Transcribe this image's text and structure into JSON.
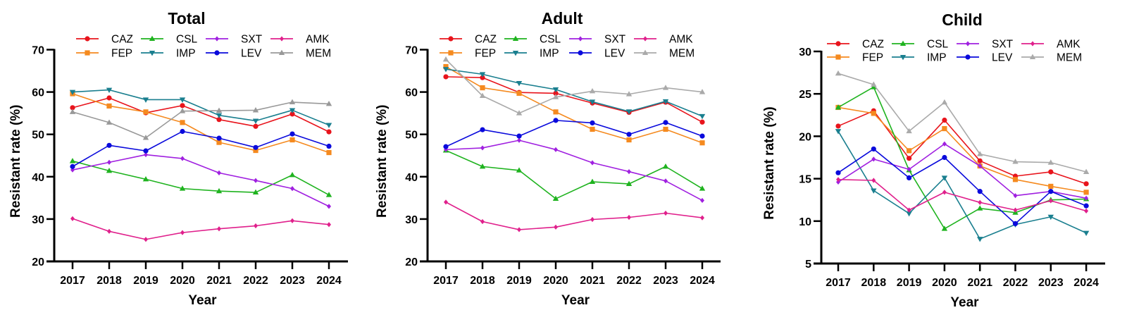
{
  "chart_data": [
    {
      "type": "line",
      "title": "Total",
      "xlabel": "Year",
      "ylabel": "Resistant rate (%)",
      "x": [
        "2017",
        "2018",
        "2019",
        "2020",
        "2021",
        "2022",
        "2023",
        "2024"
      ],
      "ylim": [
        20,
        70
      ],
      "yticks": [
        20,
        30,
        40,
        50,
        60,
        70
      ],
      "grid": false,
      "legend_position": "top",
      "series": [
        {
          "name": "CAZ",
          "color": "#e8141c",
          "marker": "circle",
          "values": [
            56.3,
            58.6,
            55.1,
            56.8,
            53.5,
            51.9,
            54.8,
            50.6
          ]
        },
        {
          "name": "FEP",
          "color": "#f58a1f",
          "marker": "square",
          "values": [
            59.6,
            56.7,
            55.3,
            52.8,
            48.1,
            46.2,
            48.7,
            45.7
          ]
        },
        {
          "name": "CSL",
          "color": "#1fb31f",
          "marker": "triangle-up",
          "values": [
            43.7,
            41.4,
            39.4,
            37.2,
            36.6,
            36.3,
            40.4,
            35.7
          ]
        },
        {
          "name": "IMP",
          "color": "#1a7f8f",
          "marker": "triangle-down",
          "values": [
            60.0,
            60.5,
            58.2,
            58.2,
            54.5,
            53.2,
            55.7,
            52.2
          ]
        },
        {
          "name": "SXT",
          "color": "#a020e0",
          "marker": "diamond",
          "values": [
            41.6,
            43.4,
            45.2,
            44.3,
            40.9,
            39.1,
            37.2,
            33.0
          ]
        },
        {
          "name": "LEV",
          "color": "#0a0adc",
          "marker": "circle",
          "values": [
            42.4,
            47.4,
            46.1,
            50.7,
            49.1,
            46.9,
            50.1,
            47.2
          ]
        },
        {
          "name": "AMK",
          "color": "#e0208c",
          "marker": "diamond",
          "values": [
            30.1,
            27.1,
            25.2,
            26.8,
            27.7,
            28.4,
            29.6,
            28.7
          ]
        },
        {
          "name": "MEM",
          "color": "#999999",
          "marker": "triangle-up",
          "values": [
            55.3,
            52.8,
            49.2,
            55.5,
            55.6,
            55.7,
            57.6,
            57.2
          ]
        }
      ]
    },
    {
      "type": "line",
      "title": "Adult",
      "xlabel": "Year",
      "ylabel": "Resistant rate (%)",
      "x": [
        "2017",
        "2018",
        "2019",
        "2020",
        "2021",
        "2022",
        "2023",
        "2024"
      ],
      "ylim": [
        20,
        70
      ],
      "yticks": [
        20,
        30,
        40,
        50,
        60,
        70
      ],
      "grid": false,
      "legend_position": "top",
      "series": [
        {
          "name": "CAZ",
          "color": "#e8141c",
          "marker": "circle",
          "values": [
            63.6,
            63.4,
            59.9,
            59.7,
            57.4,
            55.2,
            57.6,
            52.9
          ]
        },
        {
          "name": "FEP",
          "color": "#f58a1f",
          "marker": "square",
          "values": [
            66.0,
            61.0,
            59.7,
            55.3,
            51.2,
            48.7,
            51.2,
            48.0
          ]
        },
        {
          "name": "CSL",
          "color": "#1fb31f",
          "marker": "triangle-up",
          "values": [
            46.2,
            42.4,
            41.5,
            34.8,
            38.8,
            38.3,
            42.4,
            37.2
          ]
        },
        {
          "name": "IMP",
          "color": "#1a7f8f",
          "marker": "triangle-down",
          "values": [
            65.4,
            64.2,
            62.1,
            60.6,
            57.7,
            55.4,
            57.8,
            54.3
          ]
        },
        {
          "name": "SXT",
          "color": "#a020e0",
          "marker": "diamond",
          "values": [
            46.4,
            46.8,
            48.6,
            46.4,
            43.3,
            41.2,
            39.0,
            34.4
          ]
        },
        {
          "name": "LEV",
          "color": "#0a0adc",
          "marker": "circle",
          "values": [
            47.1,
            51.1,
            49.6,
            53.3,
            52.7,
            50.0,
            52.8,
            49.6
          ]
        },
        {
          "name": "AMK",
          "color": "#e0208c",
          "marker": "diamond",
          "values": [
            34.0,
            29.4,
            27.5,
            28.1,
            29.9,
            30.4,
            31.4,
            30.3
          ]
        },
        {
          "name": "MEM",
          "color": "#aaaaaa",
          "marker": "triangle-up",
          "values": [
            67.7,
            59.1,
            55.0,
            58.8,
            60.2,
            59.5,
            61.0,
            60.0
          ]
        }
      ]
    },
    {
      "type": "line",
      "title": "Child",
      "xlabel": "Year",
      "ylabel": "Resistant rate (%)",
      "x": [
        "2017",
        "2018",
        "2019",
        "2020",
        "2021",
        "2022",
        "2023",
        "2024"
      ],
      "ylim": [
        5,
        30
      ],
      "yticks": [
        5,
        10,
        15,
        20,
        25,
        30
      ],
      "grid": false,
      "legend_position": "top",
      "series": [
        {
          "name": "CAZ",
          "color": "#e8141c",
          "marker": "circle",
          "values": [
            21.2,
            23.0,
            17.4,
            21.9,
            17.1,
            15.3,
            15.8,
            14.4
          ]
        },
        {
          "name": "FEP",
          "color": "#f58a1f",
          "marker": "square",
          "values": [
            23.4,
            22.7,
            18.3,
            20.9,
            16.5,
            14.9,
            14.1,
            13.4
          ]
        },
        {
          "name": "CSL",
          "color": "#1fb31f",
          "marker": "triangle-up",
          "values": [
            23.4,
            25.8,
            16.0,
            9.1,
            11.5,
            11.0,
            12.5,
            12.6
          ]
        },
        {
          "name": "IMP",
          "color": "#1a7f8f",
          "marker": "triangle-down",
          "values": [
            20.6,
            13.6,
            10.9,
            15.1,
            7.9,
            9.6,
            10.5,
            8.6
          ]
        },
        {
          "name": "SXT",
          "color": "#a020e0",
          "marker": "diamond",
          "values": [
            14.6,
            17.3,
            16.1,
            19.1,
            16.5,
            13.0,
            13.5,
            12.7
          ]
        },
        {
          "name": "LEV",
          "color": "#0a0adc",
          "marker": "circle",
          "values": [
            15.7,
            18.5,
            15.1,
            17.5,
            13.5,
            9.7,
            13.5,
            11.8
          ]
        },
        {
          "name": "AMK",
          "color": "#e0208c",
          "marker": "diamond",
          "values": [
            14.9,
            14.8,
            11.3,
            13.4,
            12.2,
            11.3,
            12.4,
            11.2
          ]
        },
        {
          "name": "MEM",
          "color": "#aaaaaa",
          "marker": "triangle-up",
          "values": [
            27.4,
            26.1,
            20.6,
            24.0,
            17.9,
            17.0,
            16.9,
            15.8
          ]
        }
      ]
    }
  ]
}
